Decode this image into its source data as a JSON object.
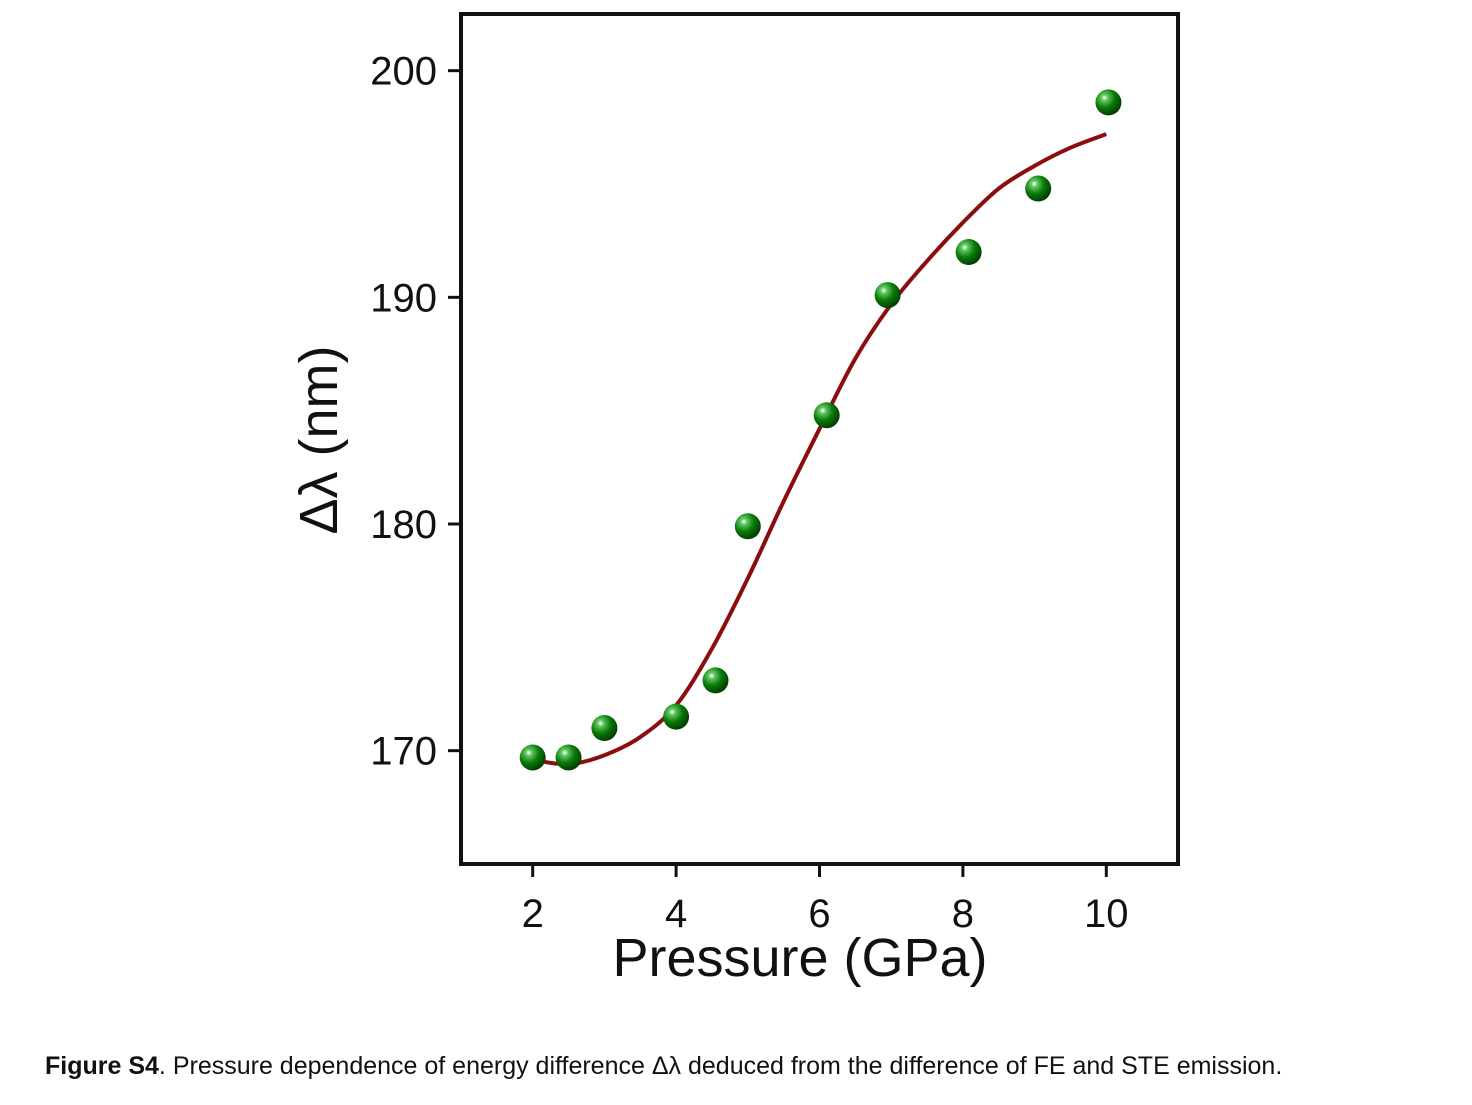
{
  "chart_data": {
    "type": "scatter",
    "xlabel": "Pressure (GPa)",
    "ylabel": "Δλ (nm)",
    "xlim": [
      1,
      11
    ],
    "ylim": [
      165,
      202.5
    ],
    "x_ticks": [
      2,
      4,
      6,
      8,
      10
    ],
    "y_ticks": [
      170,
      180,
      190,
      200
    ],
    "grid": false,
    "series": [
      {
        "kind": "points",
        "color": "#0a7a0a",
        "x": [
          2.0,
          2.5,
          3.0,
          4.0,
          4.55,
          5.0,
          6.1,
          6.95,
          8.08,
          9.05,
          10.03
        ],
        "y": [
          169.7,
          169.7,
          171.0,
          171.5,
          173.1,
          179.9,
          184.8,
          190.1,
          192.0,
          194.8,
          198.6
        ]
      },
      {
        "kind": "fit",
        "color": "#8b0d0d",
        "x": [
          2.0,
          2.5,
          3.0,
          3.5,
          4.0,
          4.5,
          5.0,
          5.5,
          6.0,
          6.5,
          7.0,
          7.5,
          8.0,
          8.5,
          9.0,
          9.5,
          10.0
        ],
        "y": [
          169.6,
          169.4,
          169.8,
          170.6,
          172.0,
          174.5,
          177.6,
          181.0,
          184.2,
          187.3,
          189.7,
          191.6,
          193.3,
          194.8,
          195.8,
          196.6,
          197.2
        ]
      }
    ]
  },
  "caption": {
    "label": "Figure S4",
    "text": ". Pressure dependence of energy difference Δλ deduced from the difference of FE and STE emission."
  }
}
